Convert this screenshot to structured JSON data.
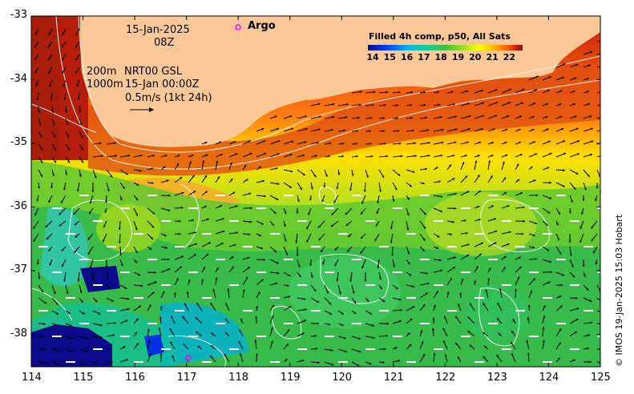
{
  "header": {
    "date": "15-Jan-2025",
    "hour": "08Z",
    "argo_label": "Argo",
    "legend_title": "Filled 4h comp, p50, All Sats",
    "depth_200": "200m",
    "depth_1000": "1000m",
    "current_source": "NRT00 GSL",
    "current_time": "15-Jan 00:00Z",
    "scale_label": "0.5m/s (1kt 24h)"
  },
  "colorbar": {
    "ticks": [
      "14",
      "15",
      "16",
      "17",
      "18",
      "19",
      "20",
      "21",
      "22"
    ],
    "colors": [
      "#0a0a8a",
      "#0040ff",
      "#00b0f0",
      "#10d0a0",
      "#40c040",
      "#a0e020",
      "#ffff00",
      "#ffb000",
      "#ff6000",
      "#c81e0a",
      "#8a1a0a"
    ]
  },
  "axes": {
    "x_ticks": [
      "114",
      "115",
      "116",
      "117",
      "118",
      "119",
      "120",
      "121",
      "122",
      "123",
      "124",
      "125"
    ],
    "y_ticks": [
      "-33",
      "-34",
      "-35",
      "-36",
      "-37",
      "-38"
    ]
  },
  "credit": "© IMOS 19-Jan-2025 15:03 Hobart",
  "colors": {
    "land": "#fcc898",
    "argo": "#ff00ff"
  }
}
